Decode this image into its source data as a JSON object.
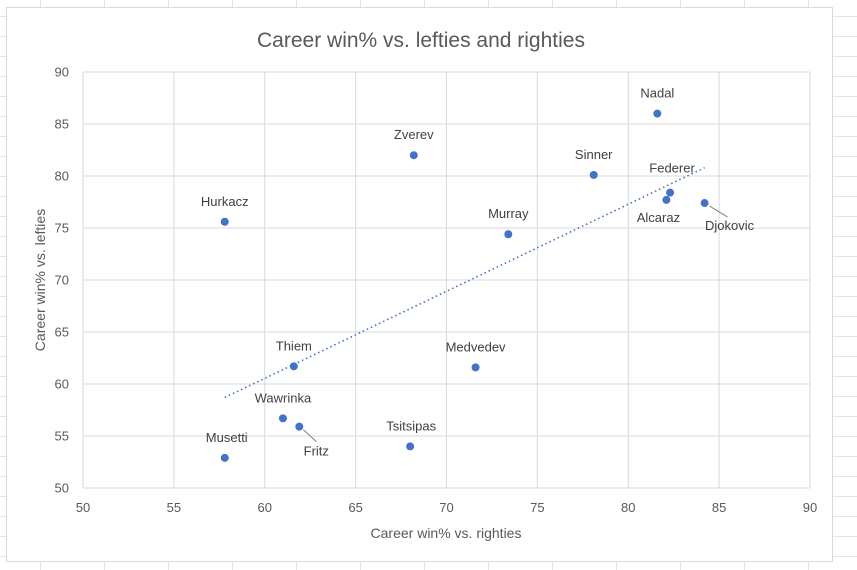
{
  "chart_data": {
    "type": "scatter",
    "title": "Career win% vs. lefties and righties",
    "xlabel": "Career win% vs. righties",
    "ylabel": "Career win% vs. lefties",
    "xlim": [
      50,
      90
    ],
    "ylim": [
      50,
      90
    ],
    "xticks": [
      50,
      55,
      60,
      65,
      70,
      75,
      80,
      85,
      90
    ],
    "yticks": [
      50,
      55,
      60,
      65,
      70,
      75,
      80,
      85,
      90
    ],
    "grid": true,
    "marker_color": "#4472c4",
    "points": [
      {
        "name": "Nadal",
        "x": 81.6,
        "y": 86.0
      },
      {
        "name": "Zverev",
        "x": 68.2,
        "y": 82.0
      },
      {
        "name": "Sinner",
        "x": 78.1,
        "y": 80.1
      },
      {
        "name": "Federer",
        "x": 82.3,
        "y": 78.4
      },
      {
        "name": "Alcaraz",
        "x": 82.1,
        "y": 77.7
      },
      {
        "name": "Djokovic",
        "x": 84.2,
        "y": 77.4
      },
      {
        "name": "Hurkacz",
        "x": 57.8,
        "y": 75.6
      },
      {
        "name": "Murray",
        "x": 73.4,
        "y": 74.4
      },
      {
        "name": "Thiem",
        "x": 61.6,
        "y": 61.7
      },
      {
        "name": "Medvedev",
        "x": 71.6,
        "y": 61.6
      },
      {
        "name": "Wawrinka",
        "x": 61.0,
        "y": 56.7
      },
      {
        "name": "Fritz",
        "x": 61.9,
        "y": 55.9
      },
      {
        "name": "Tsitsipas",
        "x": 68.0,
        "y": 54.0
      },
      {
        "name": "Musetti",
        "x": 57.8,
        "y": 52.9
      }
    ],
    "trendline": {
      "type": "linear",
      "x_start": 57.8,
      "y_start": 58.7,
      "x_end": 84.2,
      "y_end": 80.8
    }
  }
}
